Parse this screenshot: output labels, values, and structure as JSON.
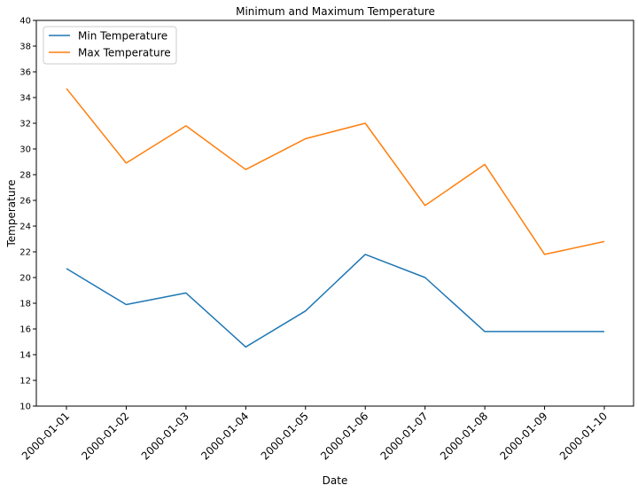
{
  "chart_data": {
    "type": "line",
    "title": "Minimum and Maximum Temperature",
    "xlabel": "Date",
    "ylabel": "Temperature",
    "categories": [
      "2000-01-01",
      "2000-01-02",
      "2000-01-03",
      "2000-01-04",
      "2000-01-05",
      "2000-01-06",
      "2000-01-07",
      "2000-01-08",
      "2000-01-09",
      "2000-01-10"
    ],
    "ylim": [
      10,
      40
    ],
    "yticks": [
      10,
      12,
      14,
      16,
      18,
      20,
      22,
      24,
      26,
      28,
      30,
      32,
      34,
      36,
      38,
      40
    ],
    "grid": false,
    "legend_position": "top-left",
    "series": [
      {
        "name": "Min Temperature",
        "color": "#1f77b4",
        "values": [
          20.7,
          17.9,
          18.8,
          14.6,
          17.4,
          21.8,
          20.0,
          15.8,
          15.8,
          15.8
        ]
      },
      {
        "name": "Max Temperature",
        "color": "#ff7f0e",
        "values": [
          34.7,
          28.9,
          31.8,
          28.4,
          30.8,
          32.0,
          25.6,
          28.8,
          21.8,
          22.8
        ]
      }
    ]
  }
}
